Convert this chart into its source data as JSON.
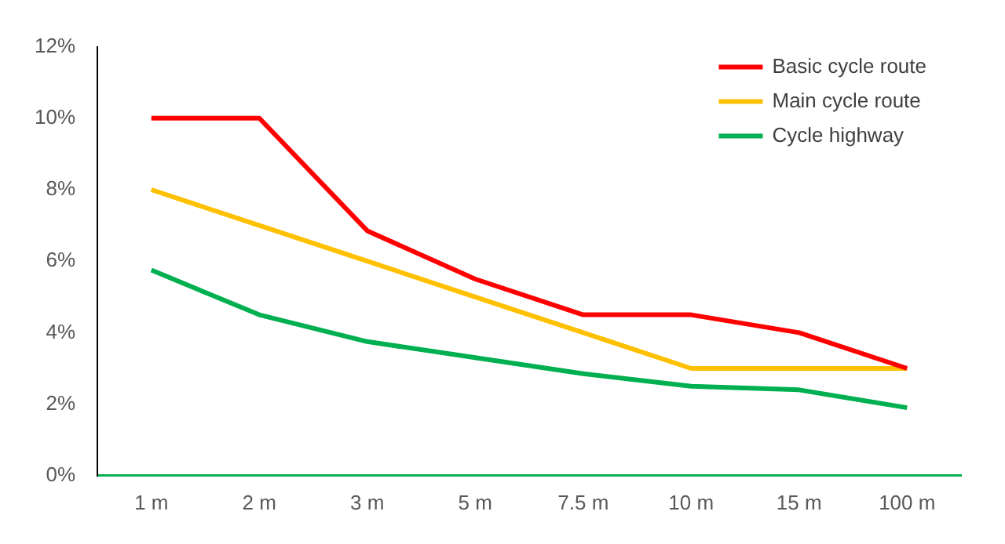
{
  "chart_data": {
    "type": "line",
    "categories": [
      "1 m",
      "2 m",
      "3 m",
      "5 m",
      "7.5 m",
      "10 m",
      "15 m",
      "100 m"
    ],
    "series": [
      {
        "name": "Basic cycle route",
        "color": "#ff0000",
        "values": [
          10,
          10,
          6.85,
          5.5,
          4.5,
          4.5,
          4,
          3
        ]
      },
      {
        "name": "Main cycle route",
        "color": "#ffc000",
        "values": [
          8,
          7,
          6,
          5,
          4,
          3,
          3,
          3
        ]
      },
      {
        "name": "Cycle highway",
        "color": "#00b050",
        "values": [
          5.75,
          4.5,
          3.75,
          3.3,
          2.85,
          2.5,
          2.4,
          1.9
        ]
      }
    ],
    "ylim": [
      0,
      12
    ],
    "yticks": [
      {
        "value": 0,
        "label": "0%"
      },
      {
        "value": 2,
        "label": "2%"
      },
      {
        "value": 4,
        "label": "4%"
      },
      {
        "value": 6,
        "label": "6%"
      },
      {
        "value": 8,
        "label": "8%"
      },
      {
        "value": 10,
        "label": "10%"
      },
      {
        "value": 12,
        "label": "12%"
      }
    ],
    "grid": false,
    "legend": "top right",
    "marker": "none",
    "line_style": "solid"
  }
}
